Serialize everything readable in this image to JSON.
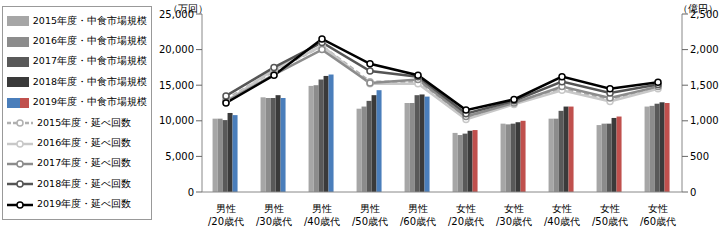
{
  "chart_data": {
    "type": "bar_line",
    "y_label": "（万回）",
    "y2_label": "（億円）",
    "categories": [
      "男性/20歳代",
      "男性/30歳代",
      "男性/40歳代",
      "男性/50歳代",
      "男性/60歳代",
      "女性/20歳代",
      "女性/30歳代",
      "女性/40歳代",
      "女性/50歳代",
      "女性/60歳代"
    ],
    "ylim": [
      0,
      25000
    ],
    "yticks": [
      0,
      {
        "value": 5000,
        "label": "5,000"
      },
      {
        "value": 10000,
        "label": "10,000"
      },
      {
        "value": 15000,
        "label": "15,000"
      },
      {
        "value": 20000,
        "label": "20,000"
      },
      {
        "value": 25000,
        "label": "25,000"
      }
    ],
    "y2lim": [
      0,
      2500
    ],
    "y2ticks": [
      0,
      500,
      {
        "value": 1000,
        "label": "1,000"
      },
      {
        "value": 1500,
        "label": "1,500"
      },
      {
        "value": 2000,
        "label": "2,000"
      },
      {
        "value": 2500,
        "label": "2,500"
      }
    ],
    "grid": false,
    "legend": "left",
    "series": [
      {
        "name": "2015年度・中食市場規模",
        "type": "bar",
        "axis": "y2",
        "color": "#a6a6a6",
        "values": [
          1030,
          1330,
          1490,
          1170,
          1250,
          830,
          960,
          1030,
          940,
          1200
        ]
      },
      {
        "name": "2016年度・中食市場規模",
        "type": "bar",
        "axis": "y2",
        "color": "#8c8c8c",
        "values": [
          1030,
          1320,
          1500,
          1200,
          1250,
          800,
          950,
          1030,
          960,
          1210
        ]
      },
      {
        "name": "2017年度・中食市場規模",
        "type": "bar",
        "axis": "y2",
        "color": "#595959",
        "values": [
          1010,
          1320,
          1580,
          1280,
          1360,
          820,
          960,
          1140,
          960,
          1240
        ]
      },
      {
        "name": "2018年度・中食市場規模",
        "type": "bar",
        "axis": "y2",
        "color": "#3a3a3a",
        "values": [
          1110,
          1360,
          1630,
          1360,
          1370,
          860,
          980,
          1200,
          1040,
          1260
        ]
      },
      {
        "name": "2019年度・中食市場規模",
        "type": "bar",
        "axis": "y2",
        "colors": [
          "#4a7ebb",
          "#4a7ebb",
          "#4a7ebb",
          "#4a7ebb",
          "#4a7ebb",
          "#c0504d",
          "#c0504d",
          "#c0504d",
          "#c0504d",
          "#c0504d"
        ],
        "values": [
          1080,
          1320,
          1650,
          1430,
          1340,
          870,
          1000,
          1200,
          1060,
          1250
        ]
      },
      {
        "name": "2015年度・延べ回数",
        "type": "line",
        "axis": "y",
        "color": "#b0b0b0",
        "line_style": "dashed",
        "marker": "circle",
        "values": [
          13000,
          17000,
          20500,
          15500,
          15500,
          10500,
          12500,
          14500,
          13000,
          14700
        ]
      },
      {
        "name": "2016年度・延べ回数",
        "type": "line",
        "axis": "y",
        "color": "#c8c8c8",
        "line_style": "solid",
        "marker": "circle",
        "values": [
          12700,
          17200,
          20500,
          15200,
          15200,
          10200,
          12300,
          14300,
          12700,
          14500
        ]
      },
      {
        "name": "2017年度・延べ回数",
        "type": "line",
        "axis": "y",
        "color": "#8c8c8c",
        "line_style": "solid",
        "marker": "circle",
        "values": [
          12700,
          16500,
          20000,
          15300,
          15800,
          10600,
          12500,
          14800,
          13200,
          14800
        ]
      },
      {
        "name": "2018年度・延べ回数",
        "type": "line",
        "axis": "y",
        "color": "#555555",
        "line_style": "solid",
        "marker": "circle",
        "values": [
          13500,
          17500,
          21000,
          17000,
          16200,
          11000,
          12800,
          15500,
          13900,
          15100
        ]
      },
      {
        "name": "2019年度・延べ回数",
        "type": "line",
        "axis": "y",
        "color": "#000000",
        "line_style": "solid",
        "marker": "circle",
        "values": [
          12500,
          16400,
          21500,
          18000,
          16400,
          11500,
          13000,
          16200,
          14500,
          15400
        ]
      }
    ]
  }
}
